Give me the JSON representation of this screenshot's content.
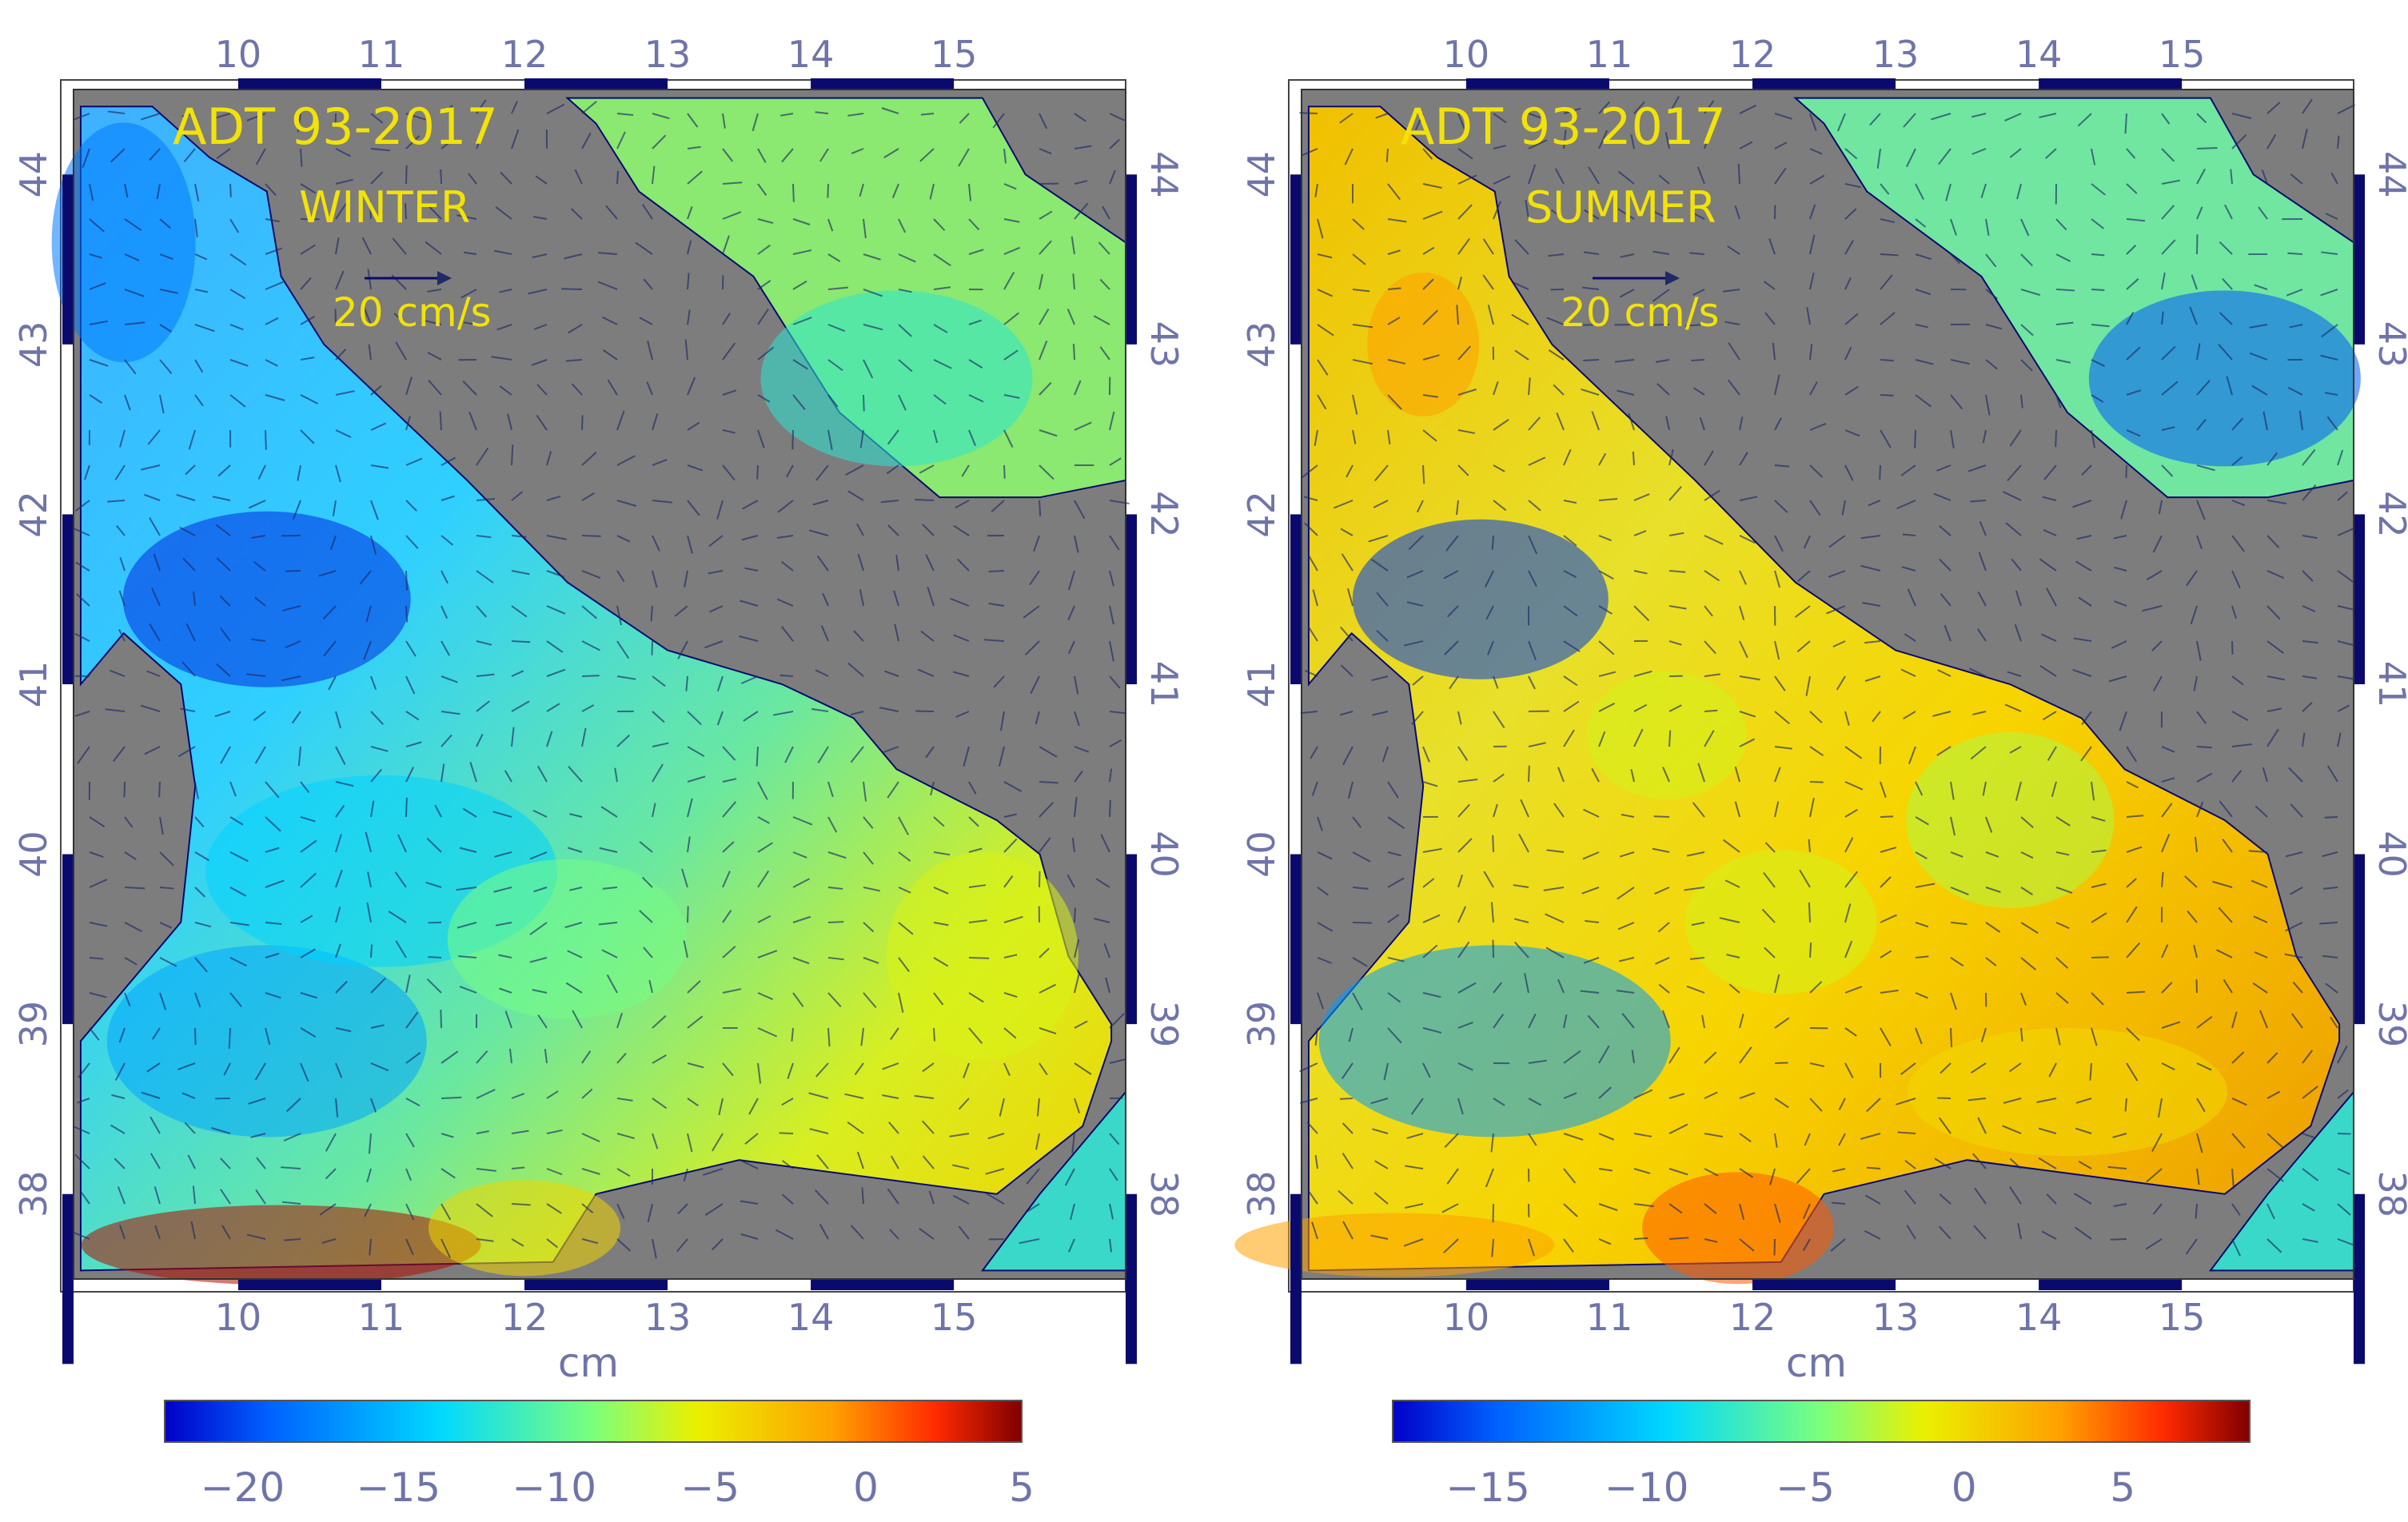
{
  "figure": {
    "panels": [
      {
        "id": "winter",
        "title": "ADT 93-2017",
        "season": "WINTER",
        "scale_label": "20 cm/s",
        "unit_label": "cm",
        "lon_ticks": [
          "10",
          "11",
          "12",
          "13",
          "14",
          "15"
        ],
        "lat_ticks": [
          "44",
          "43",
          "42",
          "41",
          "40",
          "39",
          "38"
        ],
        "colorbar": {
          "min": -22.5,
          "max": 5,
          "tick_labels": [
            "−20",
            "−15",
            "−10",
            "−5",
            "0",
            "5"
          ],
          "tick_values": [
            -20,
            -15,
            -10,
            -5,
            0,
            5
          ]
        }
      },
      {
        "id": "summer",
        "title": "ADT 93-2017",
        "season": "SUMMER",
        "scale_label": "20 cm/s",
        "unit_label": "cm",
        "lon_ticks": [
          "10",
          "11",
          "12",
          "13",
          "14",
          "15"
        ],
        "lat_ticks": [
          "44",
          "43",
          "42",
          "41",
          "40",
          "39",
          "38"
        ],
        "colorbar": {
          "min": -18,
          "max": 9,
          "tick_labels": [
            "−15",
            "−10",
            "−5",
            "0",
            "5"
          ],
          "tick_values": [
            -15,
            -10,
            -5,
            0,
            5
          ]
        }
      }
    ],
    "colors": {
      "land": "#7d7d7d",
      "frame_blue": "#0a0a6e",
      "arrow": "#1f2a66",
      "label_yellow": "#f2e20a",
      "tick_text": "#6f74a8"
    }
  }
}
